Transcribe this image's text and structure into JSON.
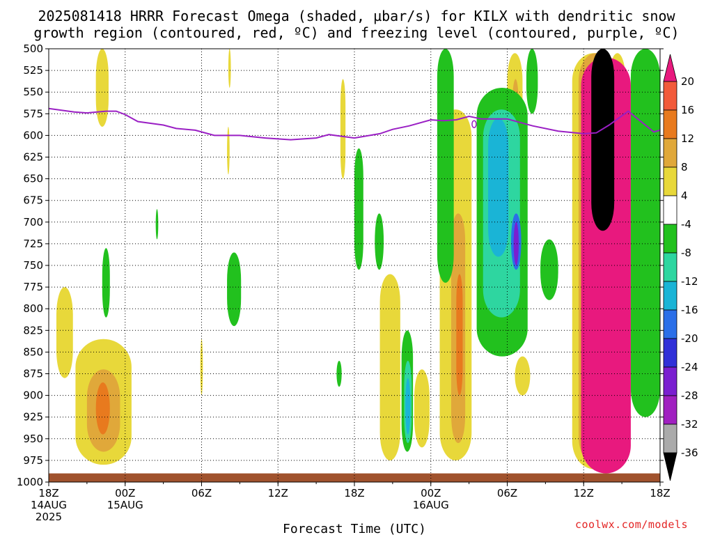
{
  "title_line1": "2025081418 HRRR Forecast Omega (shaded, µbar/s) for KILX with dendritic snow",
  "title_line2": "growth region (contoured, red, ºC) and freezing level (contoured, purple, ºC)",
  "watermark": "coolwx.com/models",
  "colors": {
    "freezing_level": "#9a1fc4",
    "ground": "#a0522d",
    "pos_4_8": "#e8d83a",
    "pos_8_12": "#e0a83a",
    "pos_12_16": "#e87a1e",
    "pos_16_20": "#f25a3a",
    "pos_20p": "#e8197e",
    "neg_4_8": "#22c11e",
    "neg_8_12": "#2ed6a0",
    "neg_12_16": "#1ab4d6",
    "neg_16_20": "#2b6fe8",
    "neg_20_24": "#3030d8",
    "neg_24_28": "#7a1fd0",
    "neg_28_32": "#a020c0",
    "neg_32_36": "#aaaaaa",
    "neg_36m": "#000000"
  },
  "chart_data": {
    "type": "heatmap",
    "xlabel": "Forecast Time (UTC)",
    "ylabel": "",
    "x_ticks": [
      {
        "label": "18Z",
        "sub": [
          "14AUG",
          "2025"
        ],
        "hour": 0
      },
      {
        "label": "00Z",
        "sub": [
          "15AUG"
        ],
        "hour": 6
      },
      {
        "label": "06Z",
        "sub": [],
        "hour": 12
      },
      {
        "label": "12Z",
        "sub": [],
        "hour": 18
      },
      {
        "label": "18Z",
        "sub": [],
        "hour": 24
      },
      {
        "label": "00Z",
        "sub": [
          "16AUG"
        ],
        "hour": 30
      },
      {
        "label": "06Z",
        "sub": [],
        "hour": 36
      },
      {
        "label": "12Z",
        "sub": [],
        "hour": 42
      },
      {
        "label": "18Z",
        "sub": [],
        "hour": 48
      }
    ],
    "xlim": [
      0,
      48
    ],
    "y_levels": [
      500,
      525,
      550,
      575,
      600,
      625,
      650,
      675,
      700,
      725,
      750,
      775,
      800,
      825,
      850,
      875,
      900,
      925,
      950,
      975,
      1000
    ],
    "ylim": [
      500,
      1000
    ],
    "grid": true,
    "colorbar": {
      "labels": [
        "20",
        "16",
        "12",
        "8",
        "4",
        "-4",
        "-8",
        "-12",
        "-16",
        "-20",
        "-24",
        "-28",
        "-32",
        "-36"
      ]
    },
    "freezing_level_series": {
      "x": [
        0,
        2,
        3,
        4.5,
        5.3,
        6,
        7,
        9,
        10,
        11.5,
        13,
        15,
        17,
        19,
        21,
        22,
        24,
        26,
        27,
        28.3,
        30,
        31,
        32,
        33,
        34,
        36,
        38,
        40,
        42,
        43,
        44,
        45.5,
        47.5,
        48
      ],
      "y": [
        569,
        573,
        574,
        572,
        572,
        576,
        584,
        588,
        592,
        594,
        600,
        600,
        603,
        605,
        603,
        599,
        603,
        598,
        593,
        589,
        582,
        583,
        582,
        578,
        581,
        581,
        589,
        595,
        598,
        597,
        588,
        572,
        596,
        594
      ]
    },
    "omega_regions": [
      {
        "level": "pos_4_8",
        "time_hours": [
          0.6,
          1.9
        ],
        "pressure_hpa": [
          775,
          880
        ]
      },
      {
        "level": "pos_4_8",
        "time_hours": [
          2.1,
          6.5
        ],
        "pressure_hpa": [
          835,
          980
        ]
      },
      {
        "level": "pos_8_12",
        "time_hours": [
          3.0,
          5.6
        ],
        "pressure_hpa": [
          870,
          965
        ]
      },
      {
        "level": "pos_12_16",
        "time_hours": [
          3.7,
          4.8
        ],
        "pressure_hpa": [
          885,
          945
        ]
      },
      {
        "level": "pos_4_8",
        "time_hours": [
          3.7,
          4.7
        ],
        "pressure_hpa": [
          500,
          590
        ]
      },
      {
        "level": "pos_4_8",
        "time_hours": [
          14.1,
          14.3
        ],
        "pressure_hpa": [
          500,
          545
        ]
      },
      {
        "level": "pos_4_8",
        "time_hours": [
          14.0,
          14.2
        ],
        "pressure_hpa": [
          590,
          645
        ]
      },
      {
        "level": "pos_4_8",
        "time_hours": [
          11.9,
          12.1
        ],
        "pressure_hpa": [
          835,
          900
        ]
      },
      {
        "level": "pos_4_8",
        "time_hours": [
          22.9,
          23.3
        ],
        "pressure_hpa": [
          535,
          650
        ]
      },
      {
        "level": "pos_4_8",
        "time_hours": [
          26.0,
          27.6
        ],
        "pressure_hpa": [
          760,
          975
        ]
      },
      {
        "level": "pos_4_8",
        "time_hours": [
          28.7,
          29.9
        ],
        "pressure_hpa": [
          870,
          960
        ]
      },
      {
        "level": "pos_4_8",
        "time_hours": [
          30.7,
          33.2
        ],
        "pressure_hpa": [
          570,
          975
        ]
      },
      {
        "level": "pos_8_12",
        "time_hours": [
          31.6,
          32.7
        ],
        "pressure_hpa": [
          690,
          955
        ]
      },
      {
        "level": "pos_12_16",
        "time_hours": [
          32.0,
          32.5
        ],
        "pressure_hpa": [
          760,
          900
        ]
      },
      {
        "level": "pos_4_8",
        "time_hours": [
          36.0,
          37.2
        ],
        "pressure_hpa": [
          505,
          655
        ]
      },
      {
        "level": "pos_8_12",
        "time_hours": [
          36.4,
          36.9
        ],
        "pressure_hpa": [
          535,
          595
        ]
      },
      {
        "level": "pos_4_8",
        "time_hours": [
          36.6,
          37.8
        ],
        "pressure_hpa": [
          855,
          900
        ]
      },
      {
        "level": "pos_4_8",
        "time_hours": [
          41.1,
          44.5
        ],
        "pressure_hpa": [
          505,
          985
        ]
      },
      {
        "level": "pos_8_12",
        "time_hours": [
          41.6,
          44.3
        ],
        "pressure_hpa": [
          505,
          980
        ]
      },
      {
        "level": "pos_4_8",
        "time_hours": [
          44.0,
          45.3
        ],
        "pressure_hpa": [
          505,
          640
        ]
      },
      {
        "level": "neg_4_8",
        "time_hours": [
          4.2,
          4.8
        ],
        "pressure_hpa": [
          730,
          810
        ]
      },
      {
        "level": "neg_4_8",
        "time_hours": [
          8.4,
          8.6
        ],
        "pressure_hpa": [
          685,
          720
        ]
      },
      {
        "level": "neg_4_8",
        "time_hours": [
          14.0,
          15.1
        ],
        "pressure_hpa": [
          735,
          820
        ]
      },
      {
        "level": "neg_4_8",
        "time_hours": [
          24.0,
          24.7
        ],
        "pressure_hpa": [
          615,
          755
        ]
      },
      {
        "level": "neg_4_8",
        "time_hours": [
          25.6,
          26.3
        ],
        "pressure_hpa": [
          690,
          755
        ]
      },
      {
        "level": "neg_4_8",
        "time_hours": [
          22.6,
          23.0
        ],
        "pressure_hpa": [
          860,
          890
        ]
      },
      {
        "level": "neg_4_8",
        "time_hours": [
          27.7,
          28.6
        ],
        "pressure_hpa": [
          825,
          965
        ]
      },
      {
        "level": "neg_8_12",
        "time_hours": [
          27.9,
          28.5
        ],
        "pressure_hpa": [
          860,
          955
        ]
      },
      {
        "level": "neg_12_16",
        "time_hours": [
          28.0,
          28.4
        ],
        "pressure_hpa": [
          880,
          945
        ]
      },
      {
        "level": "neg_4_8",
        "time_hours": [
          30.5,
          31.8
        ],
        "pressure_hpa": [
          500,
          770
        ]
      },
      {
        "level": "neg_4_8",
        "time_hours": [
          33.6,
          37.6
        ],
        "pressure_hpa": [
          545,
          855
        ]
      },
      {
        "level": "neg_8_12",
        "time_hours": [
          34.1,
          37.0
        ],
        "pressure_hpa": [
          570,
          810
        ]
      },
      {
        "level": "neg_12_16",
        "time_hours": [
          34.5,
          36.1
        ],
        "pressure_hpa": [
          580,
          740
        ]
      },
      {
        "level": "neg_16_20",
        "time_hours": [
          36.3,
          37.1
        ],
        "pressure_hpa": [
          690,
          755
        ]
      },
      {
        "level": "neg_24_28",
        "time_hours": [
          36.5,
          36.9
        ],
        "pressure_hpa": [
          700,
          750
        ]
      },
      {
        "level": "neg_4_8",
        "time_hours": [
          37.5,
          38.4
        ],
        "pressure_hpa": [
          500,
          575
        ]
      },
      {
        "level": "neg_4_8",
        "time_hours": [
          38.6,
          40.0
        ],
        "pressure_hpa": [
          720,
          790
        ]
      },
      {
        "level": "neg_4_8",
        "time_hours": [
          45.7,
          48.0
        ],
        "pressure_hpa": [
          500,
          925
        ]
      },
      {
        "level": "neg_4_8",
        "time_hours": [
          44.5,
          45.4
        ],
        "pressure_hpa": [
          830,
          960
        ]
      },
      {
        "level": "pos_20p",
        "time_hours": [
          41.8,
          45.7
        ],
        "pressure_hpa": [
          510,
          990
        ]
      },
      {
        "level": "neg_36m",
        "time_hours": [
          42.6,
          44.4
        ],
        "pressure_hpa": [
          500,
          710
        ]
      }
    ]
  }
}
